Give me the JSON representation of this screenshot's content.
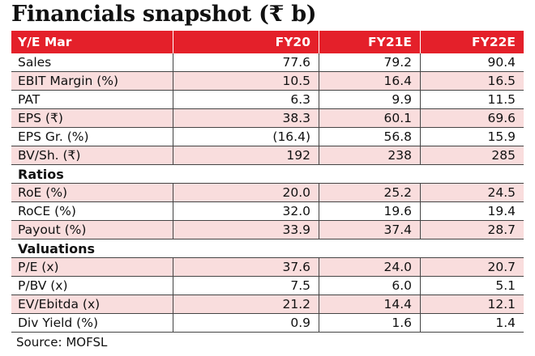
{
  "header": {
    "title": "Financials snapshot (₹ b)"
  },
  "table": {
    "columns": [
      "Y/E Mar",
      "FY20",
      "FY21E",
      "FY22E"
    ],
    "rows": [
      {
        "label": "Sales",
        "values": [
          "77.6",
          "79.2",
          "90.4"
        ]
      },
      {
        "label": "EBIT Margin (%)",
        "values": [
          "10.5",
          "16.4",
          "16.5"
        ]
      },
      {
        "label": "PAT",
        "values": [
          "6.3",
          "9.9",
          "11.5"
        ]
      },
      {
        "label": "EPS (₹)",
        "values": [
          "38.3",
          "60.1",
          "69.6"
        ]
      },
      {
        "label": "EPS Gr. (%)",
        "values": [
          "(16.4)",
          "56.8",
          "15.9"
        ]
      },
      {
        "label": "BV/Sh. (₹)",
        "values": [
          "192",
          "238",
          "285"
        ]
      },
      {
        "section": "Ratios"
      },
      {
        "label": "RoE (%)",
        "values": [
          "20.0",
          "25.2",
          "24.5"
        ]
      },
      {
        "label": "RoCE (%)",
        "values": [
          "32.0",
          "19.6",
          "19.4"
        ]
      },
      {
        "label": "Payout (%)",
        "values": [
          "33.9",
          "37.4",
          "28.7"
        ]
      },
      {
        "section": "Valuations"
      },
      {
        "label": "P/E (x)",
        "values": [
          "37.6",
          "24.0",
          "20.7"
        ]
      },
      {
        "label": "P/BV (x)",
        "values": [
          "7.5",
          "6.0",
          "5.1"
        ]
      },
      {
        "label": "EV/Ebitda (x)",
        "values": [
          "21.2",
          "14.4",
          "12.1"
        ]
      },
      {
        "label": "Div Yield (%)",
        "values": [
          "0.9",
          "1.6",
          "1.4"
        ]
      }
    ]
  },
  "footer": {
    "source": "Source: MOFSL"
  }
}
